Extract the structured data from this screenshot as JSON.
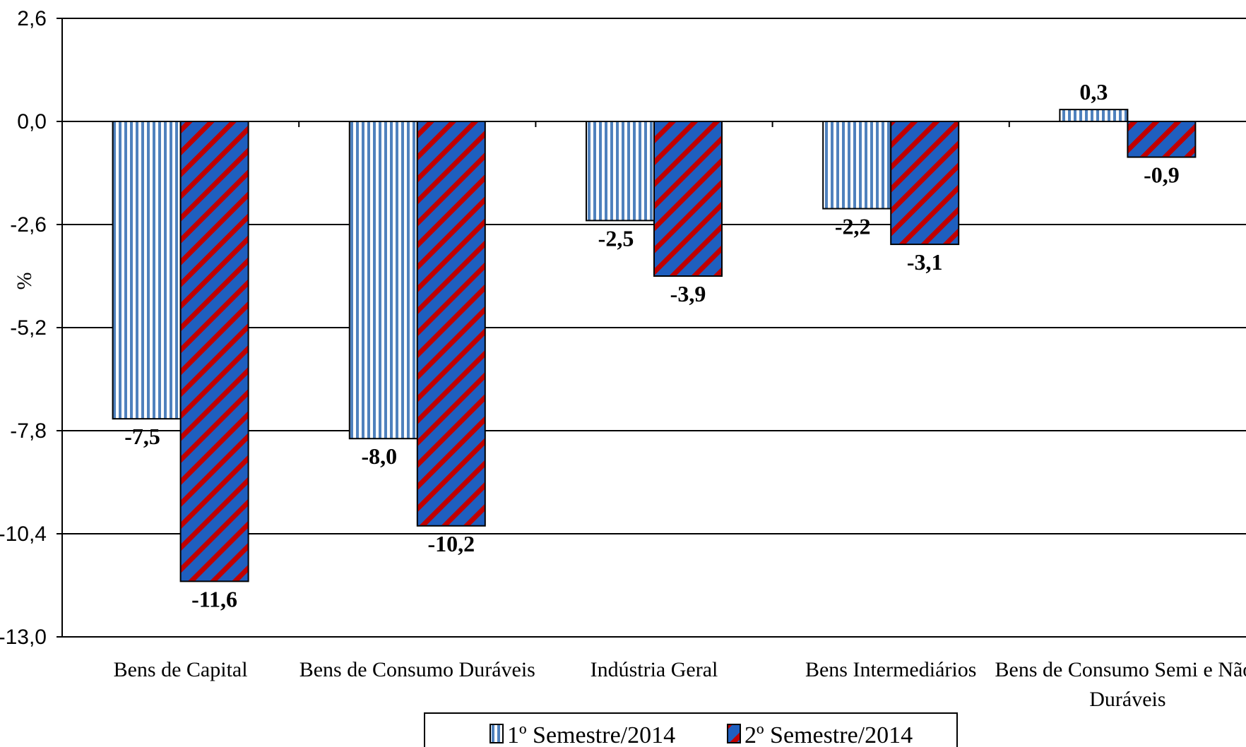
{
  "chart_data": {
    "type": "bar",
    "categories": [
      "Bens de Capital",
      "Bens de Consumo Duráveis",
      "Indústria Geral",
      "Bens Intermediários",
      "Bens de Consumo Semi e Não-Duráveis"
    ],
    "category_lines": [
      [
        "Bens de Capital"
      ],
      [
        "Bens de Consumo Duráveis"
      ],
      [
        "Indústria Geral"
      ],
      [
        "Bens Intermediários"
      ],
      [
        "Bens de Consumo Semi e Não-",
        "Duráveis"
      ]
    ],
    "series": [
      {
        "name": "1º Semestre/2014",
        "values": [
          -7.5,
          -8.0,
          -2.5,
          -2.2,
          0.3
        ],
        "labels": [
          "-7,5",
          "-8,0",
          "-2,5",
          "-2,2",
          "0,3"
        ],
        "color": "#4f81bd",
        "pattern": "vertical-stripes"
      },
      {
        "name": "2º Semestre/2014",
        "values": [
          -11.6,
          -10.2,
          -3.9,
          -3.1,
          -0.9
        ],
        "labels": [
          "-11,6",
          "-10,2",
          "-3,9",
          "-3,1",
          "-0,9"
        ],
        "color": "#1f5fbf",
        "accent": "#c00000",
        "pattern": "diagonal-stripes"
      }
    ],
    "ylabel": "%",
    "ylim": [
      -13.0,
      2.6
    ],
    "yticks": [
      2.6,
      0.0,
      -2.6,
      -5.2,
      -7.8,
      -10.4,
      -13.0
    ],
    "ytick_labels": [
      "2,6",
      "0,0",
      "-2,6",
      "-5,2",
      "-7,8",
      "-10,4",
      "-13,0"
    ],
    "grid": true,
    "legend_position": "bottom"
  }
}
